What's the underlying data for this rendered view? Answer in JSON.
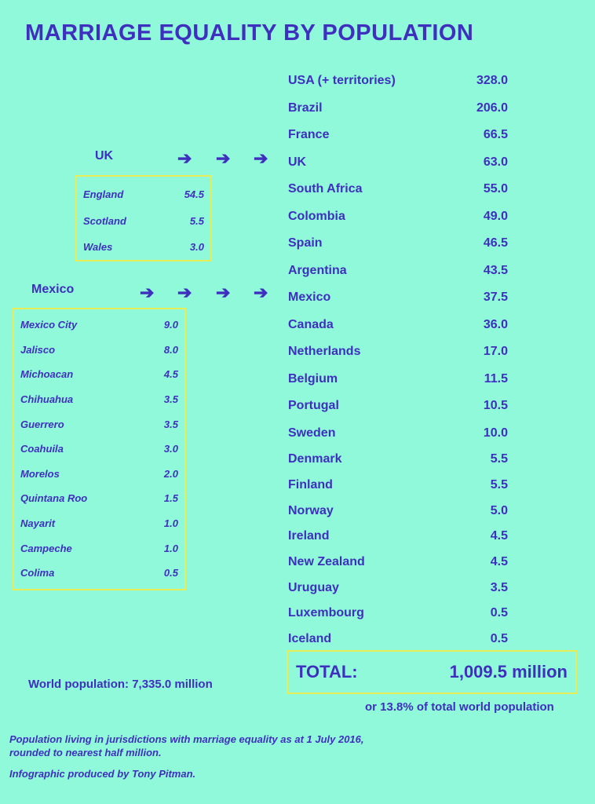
{
  "title": "MARRIAGE EQUALITY BY POPULATION",
  "chart_data": {
    "type": "table",
    "title": "MARRIAGE EQUALITY BY POPULATION",
    "rows": [
      {
        "name": "USA (+ territories)",
        "value": "328.0"
      },
      {
        "name": "Brazil",
        "value": "206.0"
      },
      {
        "name": "France",
        "value": "66.5"
      },
      {
        "name": "UK",
        "value": "63.0"
      },
      {
        "name": "South Africa",
        "value": "55.0"
      },
      {
        "name": "Colombia",
        "value": "49.0"
      },
      {
        "name": "Spain",
        "value": "46.5"
      },
      {
        "name": "Argentina",
        "value": "43.5"
      },
      {
        "name": "Mexico",
        "value": "37.5"
      },
      {
        "name": "Canada",
        "value": "36.0"
      },
      {
        "name": "Netherlands",
        "value": "17.0"
      },
      {
        "name": "Belgium",
        "value": "11.5"
      },
      {
        "name": "Portugal",
        "value": "10.5"
      },
      {
        "name": "Sweden",
        "value": "10.0"
      },
      {
        "name": "Denmark",
        "value": "5.5"
      },
      {
        "name": "Finland",
        "value": "5.5"
      },
      {
        "name": "Norway",
        "value": "5.0"
      },
      {
        "name": "Ireland",
        "value": "4.5"
      },
      {
        "name": "New Zealand",
        "value": "4.5"
      },
      {
        "name": "Uruguay",
        "value": "3.5"
      },
      {
        "name": "Luxembourg",
        "value": "0.5"
      },
      {
        "name": "Iceland",
        "value": "0.5"
      }
    ],
    "uk": {
      "label": "UK",
      "parts": [
        {
          "name": "England",
          "value": "54.5"
        },
        {
          "name": "Scotland",
          "value": "5.5"
        },
        {
          "name": "Wales",
          "value": "3.0"
        }
      ]
    },
    "mexico": {
      "label": "Mexico",
      "parts": [
        {
          "name": "Mexico City",
          "value": "9.0"
        },
        {
          "name": "Jalisco",
          "value": "8.0"
        },
        {
          "name": "Michoacan",
          "value": "4.5"
        },
        {
          "name": "Chihuahua",
          "value": "3.5"
        },
        {
          "name": "Guerrero",
          "value": "3.5"
        },
        {
          "name": "Coahuila",
          "value": "3.0"
        },
        {
          "name": "Morelos",
          "value": "2.0"
        },
        {
          "name": "Quintana Roo",
          "value": "1.5"
        },
        {
          "name": "Nayarit",
          "value": "1.0"
        },
        {
          "name": "Campeche",
          "value": "1.0"
        },
        {
          "name": "Colima",
          "value": "0.5"
        }
      ]
    },
    "total_label": "TOTAL:",
    "total_value": "1,009.5 million",
    "share": "or 13.8% of total world population",
    "world": "World population: 7,335.0 million"
  },
  "notes": {
    "line1": "Population living in jurisdictions with marriage equality as at 1 July 2016,",
    "line2": "rounded to nearest half million.",
    "credit": "Infographic produced by Tony Pitman."
  },
  "arrow_glyph": "➔",
  "colors": {
    "background": "#8ff9d9",
    "text": "#3f2fbf",
    "box_border": "#e8ec55"
  }
}
